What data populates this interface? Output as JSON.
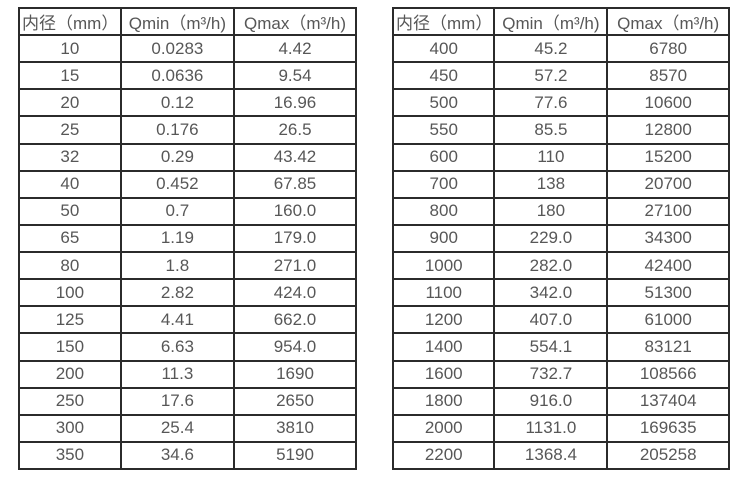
{
  "colors": {
    "background": "#ffffff",
    "border": "#2b2b2b",
    "text": "#575757"
  },
  "tables": [
    {
      "name": "flow-spec-small-diameters",
      "headers": [
        "内径（mm）",
        "Qmin（m³/h)",
        "Qmax（m³/h)"
      ],
      "rows": [
        [
          "10",
          "0.0283",
          "4.42"
        ],
        [
          "15",
          "0.0636",
          "9.54"
        ],
        [
          "20",
          "0.12",
          "16.96"
        ],
        [
          "25",
          "0.176",
          "26.5"
        ],
        [
          "32",
          "0.29",
          "43.42"
        ],
        [
          "40",
          "0.452",
          "67.85"
        ],
        [
          "50",
          "0.7",
          "160.0"
        ],
        [
          "65",
          "1.19",
          "179.0"
        ],
        [
          "80",
          "1.8",
          "271.0"
        ],
        [
          "100",
          "2.82",
          "424.0"
        ],
        [
          "125",
          "4.41",
          "662.0"
        ],
        [
          "150",
          "6.63",
          "954.0"
        ],
        [
          "200",
          "11.3",
          "1690"
        ],
        [
          "250",
          "17.6",
          "2650"
        ],
        [
          "300",
          "25.4",
          "3810"
        ],
        [
          "350",
          "34.6",
          "5190"
        ]
      ]
    },
    {
      "name": "flow-spec-large-diameters",
      "headers": [
        "内径（mm）",
        "Qmin（m³/h)",
        "Qmax（m³/h)"
      ],
      "rows": [
        [
          "400",
          "45.2",
          "6780"
        ],
        [
          "450",
          "57.2",
          "8570"
        ],
        [
          "500",
          "77.6",
          "10600"
        ],
        [
          "550",
          "85.5",
          "12800"
        ],
        [
          "600",
          "110",
          "15200"
        ],
        [
          "700",
          "138",
          "20700"
        ],
        [
          "800",
          "180",
          "27100"
        ],
        [
          "900",
          "229.0",
          "34300"
        ],
        [
          "1000",
          "282.0",
          "42400"
        ],
        [
          "1100",
          "342.0",
          "51300"
        ],
        [
          "1200",
          "407.0",
          "61000"
        ],
        [
          "1400",
          "554.1",
          "83121"
        ],
        [
          "1600",
          "732.7",
          "108566"
        ],
        [
          "1800",
          "916.0",
          "137404"
        ],
        [
          "2000",
          "1131.0",
          "169635"
        ],
        [
          "2200",
          "1368.4",
          "205258"
        ]
      ]
    }
  ]
}
